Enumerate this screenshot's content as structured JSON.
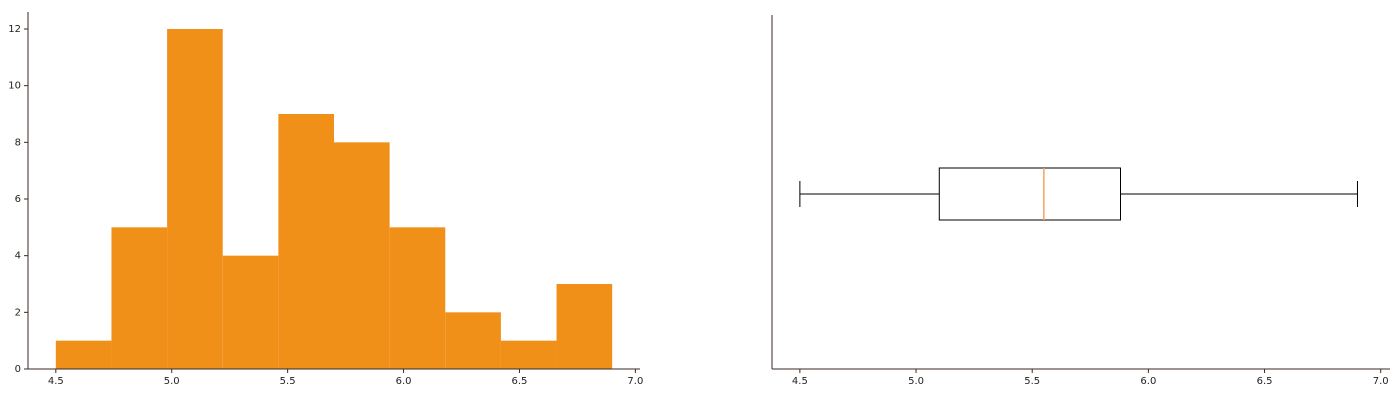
{
  "chart_data": [
    {
      "type": "histogram",
      "bins": [
        4.5,
        4.74,
        4.98,
        5.22,
        5.46,
        5.7,
        5.94,
        6.18,
        6.42,
        6.66,
        6.9
      ],
      "values": [
        1,
        5,
        12,
        4,
        9,
        8,
        5,
        2,
        1,
        3
      ],
      "color": "#f09019",
      "xlim": [
        4.38,
        7.02
      ],
      "xticks": [
        4.5,
        {
          "value": 5,
          "label": "5.0"
        },
        5.5,
        {
          "value": 6,
          "label": "6.0"
        },
        6.5,
        {
          "value": 7,
          "label": "7.0"
        }
      ],
      "ylim": [
        0,
        12.6
      ],
      "yticks": [
        0,
        2,
        4,
        6,
        8,
        10,
        12
      ]
    },
    {
      "type": "box",
      "orientation": "horizontal",
      "stats": {
        "min": 4.5,
        "q1": 5.1,
        "median": 5.55,
        "q3": 5.88,
        "max": 6.9
      },
      "color": "#000000",
      "median_color": "#f4a460",
      "xlim": [
        4.38,
        7.04
      ],
      "xticks": [
        4.5,
        {
          "value": 5,
          "label": "5.0"
        },
        5.5,
        {
          "value": 6,
          "label": "6.0"
        },
        6.5,
        {
          "value": 7,
          "label": "7.0"
        }
      ]
    }
  ]
}
